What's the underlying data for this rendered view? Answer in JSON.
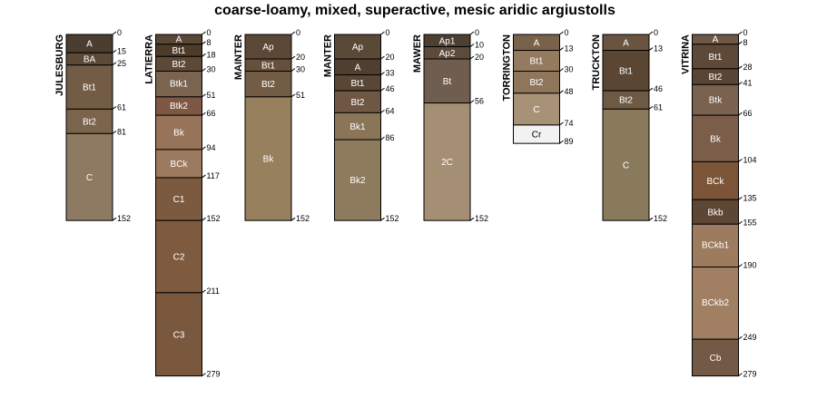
{
  "title": "coarse-loamy, mixed, superactive, mesic aridic argiustolls",
  "chart_data": {
    "type": "soil-profile-sketch",
    "depth_units": "cm",
    "profiles": [
      {
        "name": "JULESBURG",
        "horizons": [
          {
            "name": "A",
            "top": 0,
            "bottom": 15,
            "color": "#4B3D2F"
          },
          {
            "name": "BA",
            "top": 15,
            "bottom": 25,
            "color": "#5C4A37"
          },
          {
            "name": "Bt1",
            "top": 25,
            "bottom": 61,
            "color": "#725C45"
          },
          {
            "name": "Bt2",
            "top": 61,
            "bottom": 81,
            "color": "#7A644B"
          },
          {
            "name": "C",
            "top": 81,
            "bottom": 152,
            "color": "#8E7A62"
          }
        ]
      },
      {
        "name": "LATIERRA",
        "horizons": [
          {
            "name": "A",
            "top": 0,
            "bottom": 8,
            "color": "#5A4837"
          },
          {
            "name": "Bt1",
            "top": 8,
            "bottom": 18,
            "color": "#4E3C2B"
          },
          {
            "name": "Bt2",
            "top": 18,
            "bottom": 30,
            "color": "#5E4836"
          },
          {
            "name": "Btk1",
            "top": 30,
            "bottom": 51,
            "color": "#7A6450"
          },
          {
            "name": "Btk2",
            "top": 51,
            "bottom": 66,
            "color": "#7E5844"
          },
          {
            "name": "Bk",
            "top": 66,
            "bottom": 94,
            "color": "#977359"
          },
          {
            "name": "BCk",
            "top": 94,
            "bottom": 117,
            "color": "#9C7A5F"
          },
          {
            "name": "C1",
            "top": 117,
            "bottom": 152,
            "color": "#7C5A40"
          },
          {
            "name": "C2",
            "top": 152,
            "bottom": 211,
            "color": "#7E5A3E"
          },
          {
            "name": "C3",
            "top": 211,
            "bottom": 279,
            "color": "#7A583D"
          }
        ]
      },
      {
        "name": "MAINTER",
        "horizons": [
          {
            "name": "Ap",
            "top": 0,
            "bottom": 20,
            "color": "#5B4836"
          },
          {
            "name": "Bt1",
            "top": 20,
            "bottom": 30,
            "color": "#66503C"
          },
          {
            "name": "Bt2",
            "top": 30,
            "bottom": 51,
            "color": "#735C45"
          },
          {
            "name": "Bk",
            "top": 51,
            "bottom": 152,
            "color": "#97805E"
          }
        ]
      },
      {
        "name": "MANTER",
        "horizons": [
          {
            "name": "Ap",
            "top": 0,
            "bottom": 20,
            "color": "#5B4938"
          },
          {
            "name": "A",
            "top": 20,
            "bottom": 33,
            "color": "#4F3F30"
          },
          {
            "name": "Bt1",
            "top": 33,
            "bottom": 46,
            "color": "#5A4634"
          },
          {
            "name": "Bt2",
            "top": 46,
            "bottom": 64,
            "color": "#6E5843"
          },
          {
            "name": "Bk1",
            "top": 64,
            "bottom": 86,
            "color": "#8A7558"
          },
          {
            "name": "Bk2",
            "top": 86,
            "bottom": 152,
            "color": "#8E7A5D"
          }
        ]
      },
      {
        "name": "MAWER",
        "horizons": [
          {
            "name": "Ap1",
            "top": 0,
            "bottom": 10,
            "color": "#4E3F33"
          },
          {
            "name": "Ap2",
            "top": 10,
            "bottom": 20,
            "color": "#5C4A3B"
          },
          {
            "name": "Bt",
            "top": 20,
            "bottom": 56,
            "color": "#6F5E50"
          },
          {
            "name": "2C",
            "top": 56,
            "bottom": 152,
            "color": "#A58F74"
          }
        ]
      },
      {
        "name": "TORRINGTON",
        "horizons": [
          {
            "name": "A",
            "top": 0,
            "bottom": 13,
            "color": "#7A624A"
          },
          {
            "name": "Bt1",
            "top": 13,
            "bottom": 30,
            "color": "#947A5F"
          },
          {
            "name": "Bt2",
            "top": 30,
            "bottom": 48,
            "color": "#8F755A"
          },
          {
            "name": "C",
            "top": 48,
            "bottom": 74,
            "color": "#A89277"
          },
          {
            "name": "Cr",
            "top": 74,
            "bottom": 89,
            "color": "#F2F2F2"
          }
        ]
      },
      {
        "name": "TRUCKTON",
        "horizons": [
          {
            "name": "A",
            "top": 0,
            "bottom": 13,
            "color": "#6A5440"
          },
          {
            "name": "Bt1",
            "top": 13,
            "bottom": 46,
            "color": "#5A4632"
          },
          {
            "name": "Bt2",
            "top": 46,
            "bottom": 61,
            "color": "#6E5A44"
          },
          {
            "name": "C",
            "top": 61,
            "bottom": 152,
            "color": "#8A7A5C"
          }
        ]
      },
      {
        "name": "VITRINA",
        "horizons": [
          {
            "name": "A",
            "top": 0,
            "bottom": 8,
            "color": "#6E5744"
          },
          {
            "name": "Bt1",
            "top": 8,
            "bottom": 28,
            "color": "#5E4938"
          },
          {
            "name": "Bt2",
            "top": 28,
            "bottom": 41,
            "color": "#5A4433"
          },
          {
            "name": "Btk",
            "top": 41,
            "bottom": 66,
            "color": "#7A6250"
          },
          {
            "name": "Bk",
            "top": 66,
            "bottom": 104,
            "color": "#7B5E4A"
          },
          {
            "name": "BCk",
            "top": 104,
            "bottom": 135,
            "color": "#7C5538"
          },
          {
            "name": "Bkb",
            "top": 135,
            "bottom": 155,
            "color": "#5E4634"
          },
          {
            "name": "BCkb1",
            "top": 155,
            "bottom": 190,
            "color": "#9D7B5F"
          },
          {
            "name": "BCkb2",
            "top": 190,
            "bottom": 249,
            "color": "#A17F62"
          },
          {
            "name": "Cb",
            "top": 249,
            "bottom": 279,
            "color": "#735A47"
          }
        ]
      }
    ]
  }
}
